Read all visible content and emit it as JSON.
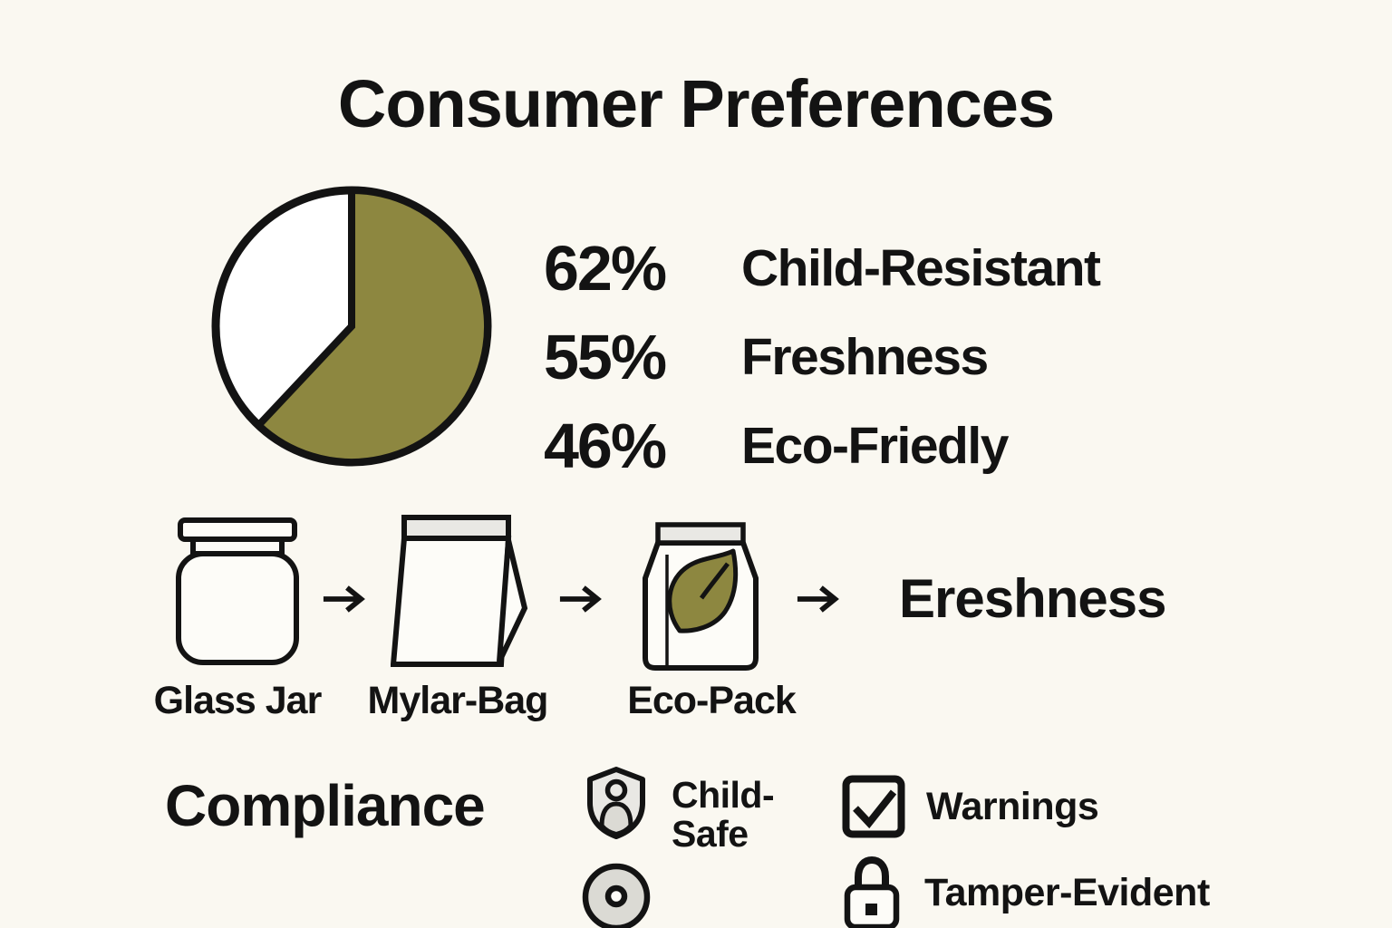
{
  "title": "Consumer Preferences",
  "colors": {
    "background": "#FAF8F1",
    "ink": "#131313",
    "olive": "#8D8740",
    "paper": "#FDFCF8",
    "panel": "#E9E8E4",
    "panel_dark": "#DBDAD4"
  },
  "chart_data": {
    "type": "pie",
    "title": "Consumer Preferences",
    "slices": [
      {
        "label": "Child-Resistant",
        "value": 62,
        "color": "#8D8740"
      },
      {
        "label": "Remainder",
        "value": 38,
        "color": "#FFFFFF"
      }
    ],
    "start_angle_deg": 0,
    "direction": "clockwise",
    "outline_color": "#131313",
    "legend_position": "right"
  },
  "stats": [
    {
      "value": "62%",
      "label": "Child-Resistant"
    },
    {
      "value": "55%",
      "label": "Freshness"
    },
    {
      "value": "46%",
      "label": "Eco-Friedly"
    }
  ],
  "packaging_flow": {
    "arrow_symbol": "→",
    "steps": [
      {
        "icon": "glass-jar-icon",
        "label": "Glass Jar"
      },
      {
        "icon": "mylar-bag-icon",
        "label": "Mylar-Bag"
      },
      {
        "icon": "eco-pack-icon",
        "label": "Eco-Pack"
      }
    ],
    "result": "Ereshness"
  },
  "compliance": {
    "heading": "Compliance",
    "child_safe": {
      "icon": "child-safe-shield-icon",
      "line1": "Child-",
      "line2": "Safe"
    },
    "warnings": {
      "icon": "warnings-checkbox-icon",
      "label": "Warnings"
    },
    "seal": {
      "icon": "seal-disc-icon"
    },
    "tamper": {
      "icon": "tamper-evident-lock-icon",
      "label": "Tamper-Evident"
    }
  }
}
